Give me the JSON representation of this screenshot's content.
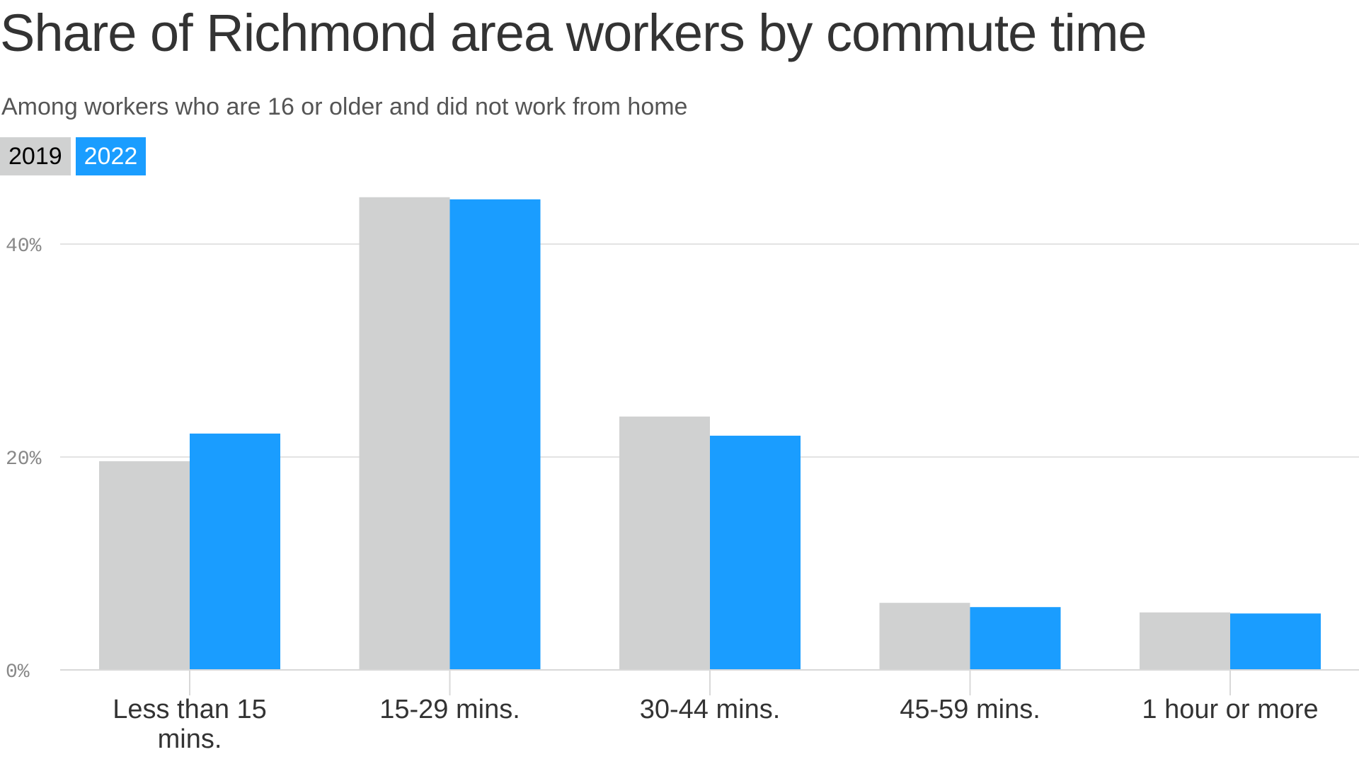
{
  "title": "Share of Richmond area workers by commute time",
  "subtitle": "Among workers who are 16 or older and did not work from home",
  "legend": {
    "items": [
      {
        "label": "2019",
        "color": "#d0d1d1"
      },
      {
        "label": "2022",
        "color": "#1a9dff"
      }
    ]
  },
  "chart_data": {
    "type": "bar",
    "title": "Share of Richmond area workers by commute time",
    "subtitle": "Among workers who are 16 or older and did not work from home",
    "categories": [
      "Less than 15 mins.",
      "15-29 mins.",
      "30-44 mins.",
      "45-59 mins.",
      "1 hour or more"
    ],
    "series": [
      {
        "name": "2019",
        "color": "#d0d1d1",
        "values": [
          19.6,
          44.4,
          23.8,
          6.3,
          5.4
        ]
      },
      {
        "name": "2022",
        "color": "#1a9dff",
        "values": [
          22.2,
          44.2,
          22.0,
          5.9,
          5.3
        ]
      }
    ],
    "ylim": [
      0,
      45
    ],
    "yticks": [
      0,
      20,
      40
    ],
    "ytick_labels": [
      "0%",
      "20%",
      "40%"
    ],
    "xlabel": "",
    "ylabel": "",
    "grid": true,
    "legend_position": "top-left"
  }
}
